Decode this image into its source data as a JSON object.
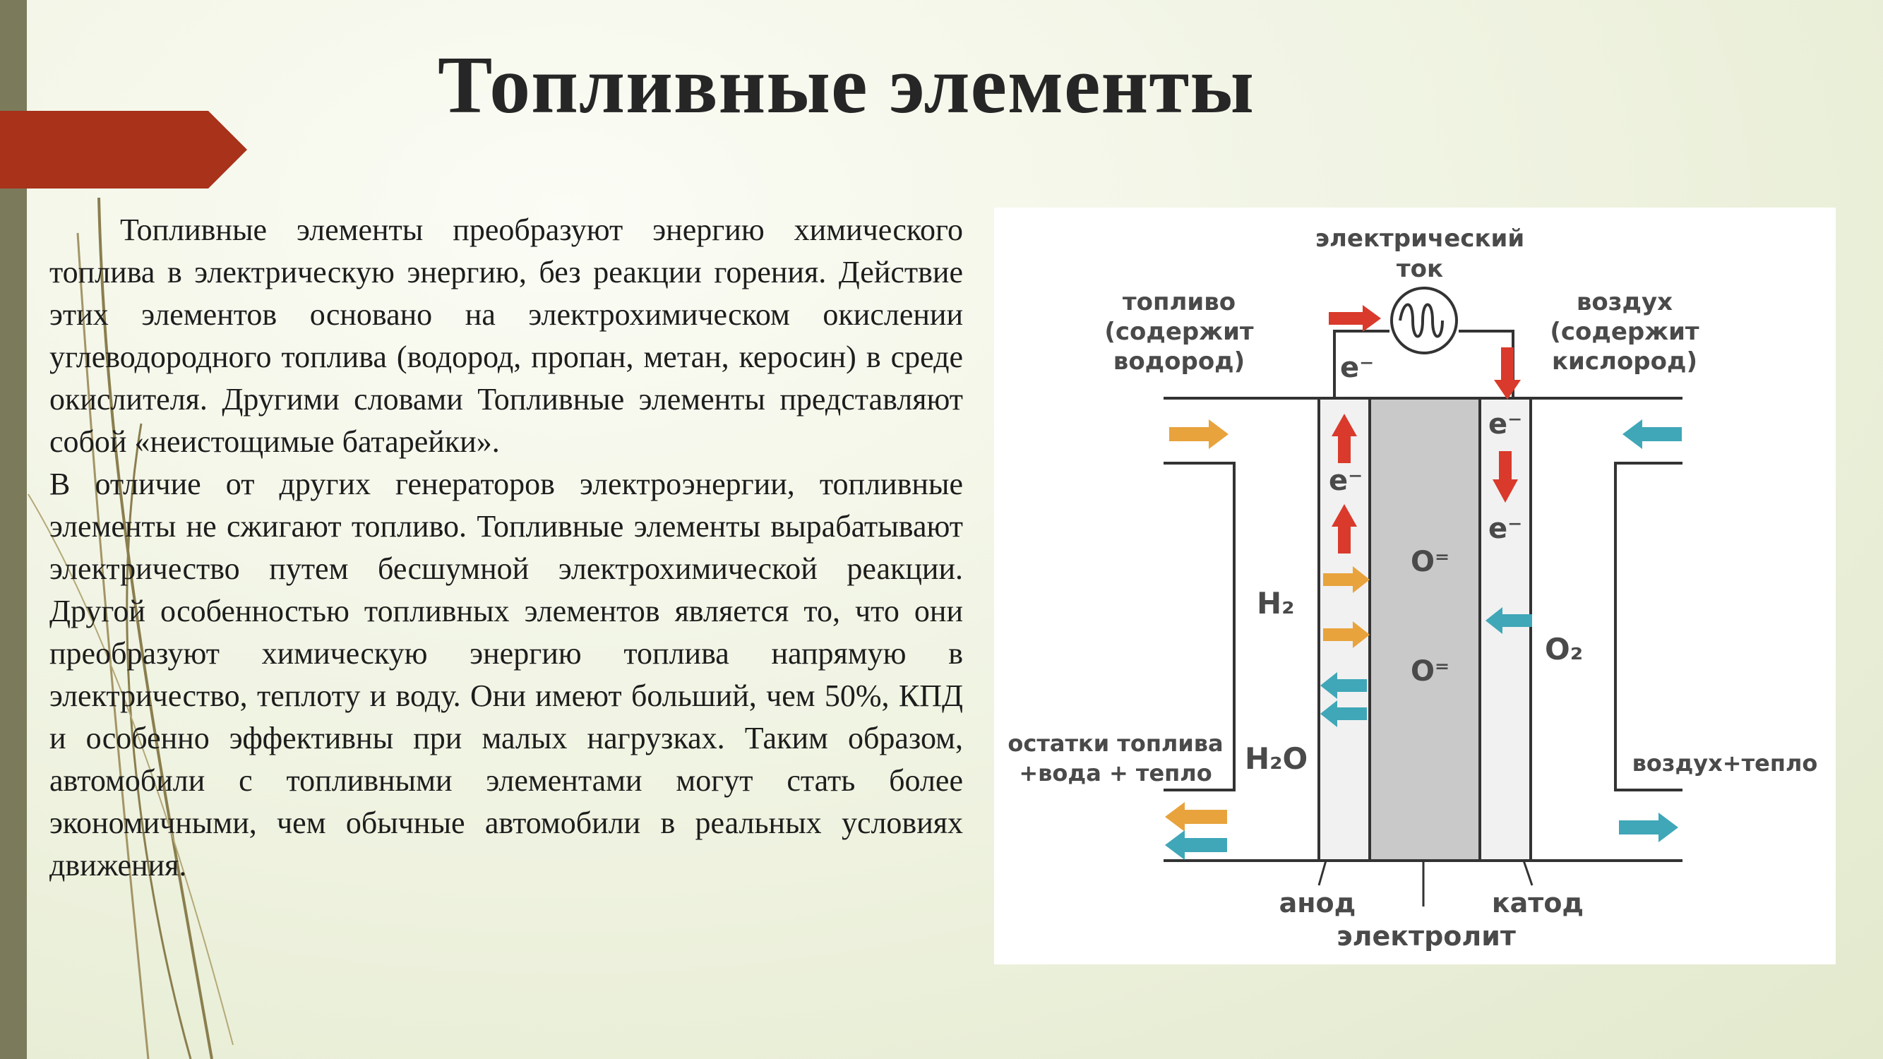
{
  "slide": {
    "title": "Топливные элементы",
    "paragraph1": "Топливные элементы преобразуют энергию химического топлива в электрическую энергию, без реакции горения. Действие этих элементов основано на электрохимическом окислении углеводородного топлива (водород, пропан, метан, керосин) в среде окислителя. Другими словами Топливные элементы представляют собой «неистощимые батарейки».",
    "paragraph2": "В отличие от других генераторов электроэнергии, топливные элементы не сжигают топливо. Топливные элементы вырабатывают электричество путем бесшумной электрохимической реакции. Другой особенностью топливных элементов является то, что они преобразуют химическую энергию топлива напрямую в электричество, теплоту и воду. Они имеют больший, чем 50%, КПД и особенно эффективны при малых нагрузках. Таким образом, автомобили с топливными элементами могут стать более экономичными, чем обычные автомобили в реальных условиях движения."
  },
  "diagram": {
    "current_label": [
      "электрический",
      "ток"
    ],
    "fuel_label": [
      "топливо",
      "(содержит",
      "водород)"
    ],
    "air_label": [
      "воздух",
      "(содержит",
      "кислород)"
    ],
    "electron": "e⁻",
    "h2": "H₂",
    "o2": "O₂",
    "oxide_ion": "O⁼",
    "h2o": "H₂O",
    "exhaust_label": [
      "остатки топлива",
      "+вода + тепло"
    ],
    "air_heat_label": "воздух+тепло",
    "anode": "анод",
    "cathode": "катод",
    "electrolyte": "электролит"
  },
  "colors": {
    "left_bar": "#7b7a5b",
    "accent_red": "#a8321a",
    "arrow_orange": "#e8a33d",
    "arrow_teal": "#3fa7b8",
    "arrow_red": "#d93a2b",
    "electrolyte_gray": "#c9c9c9"
  }
}
